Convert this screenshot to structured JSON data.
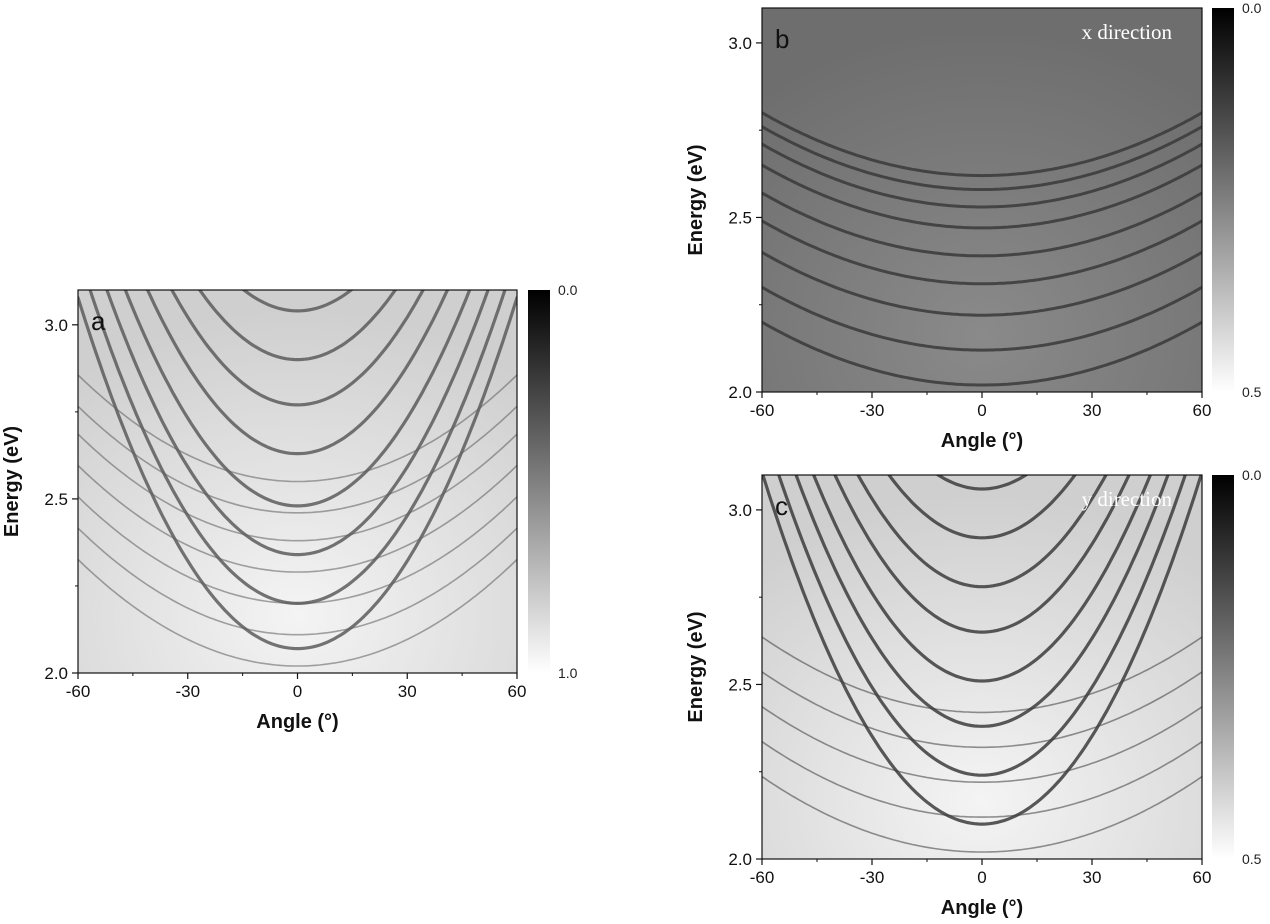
{
  "chart_data": [
    {
      "type": "heatmap",
      "panel_label": "a",
      "direction_label": "",
      "xlabel": "Angle (°)",
      "ylabel": "Energy (eV)",
      "xlim": [
        -60,
        60
      ],
      "ylim": [
        2.0,
        3.1
      ],
      "xticks": [
        -60,
        -30,
        0,
        30,
        60
      ],
      "xtick_labels": [
        "-60",
        "-30",
        "0",
        "30",
        "60"
      ],
      "yticks": [
        2.0,
        2.5,
        3.0
      ],
      "ytick_labels": [
        "2.0",
        "2.5",
        "3.0"
      ],
      "colorbar": {
        "min_label": "0.0",
        "max_label": "1.0",
        "colormap": "gray"
      },
      "band_families": [
        {
          "mode_energies_at_0": [
            2.07,
            2.2,
            2.34,
            2.48,
            2.63,
            2.77,
            2.9,
            3.04
          ],
          "curvature": 0.00028
        },
        {
          "mode_energies_at_0": [
            2.02,
            2.11,
            2.2,
            2.29,
            2.38,
            2.46,
            2.55
          ],
          "curvature": 8.5e-05
        }
      ]
    },
    {
      "type": "heatmap",
      "panel_label": "b",
      "direction_label": "x direction",
      "xlabel": "Angle (°)",
      "ylabel": "Energy (eV)",
      "xlim": [
        -60,
        60
      ],
      "ylim": [
        2.0,
        3.1
      ],
      "xticks": [
        -60,
        -30,
        0,
        30,
        60
      ],
      "xtick_labels": [
        "-60",
        "-30",
        "0",
        "30",
        "60"
      ],
      "yticks": [
        2.0,
        2.5,
        3.0
      ],
      "ytick_labels": [
        "2.0",
        "2.5",
        "3.0"
      ],
      "colorbar": {
        "min_label": "0.0",
        "max_label": "0.5",
        "colormap": "gray"
      },
      "band_families": [
        {
          "mode_energies_at_0": [
            2.02,
            2.12,
            2.22,
            2.31,
            2.39,
            2.47,
            2.53,
            2.58,
            2.62
          ],
          "curvature": 5e-05
        }
      ]
    },
    {
      "type": "heatmap",
      "panel_label": "c",
      "direction_label": "y direction",
      "xlabel": "Angle (°)",
      "ylabel": "Energy (eV)",
      "xlim": [
        -60,
        60
      ],
      "ylim": [
        2.0,
        3.1
      ],
      "xticks": [
        -60,
        -30,
        0,
        30,
        60
      ],
      "xtick_labels": [
        "-60",
        "-30",
        "0",
        "30",
        "60"
      ],
      "yticks": [
        2.0,
        2.5,
        3.0
      ],
      "ytick_labels": [
        "2.0",
        "2.5",
        "3.0"
      ],
      "colorbar": {
        "min_label": "0.0",
        "max_label": "0.5",
        "colormap": "gray"
      },
      "band_families": [
        {
          "mode_energies_at_0": [
            2.1,
            2.24,
            2.38,
            2.51,
            2.65,
            2.78,
            2.92,
            3.06
          ],
          "curvature": 0.00028
        },
        {
          "mode_energies_at_0": [
            2.02,
            2.12,
            2.22,
            2.32,
            2.42
          ],
          "curvature": 6e-05
        }
      ]
    }
  ]
}
